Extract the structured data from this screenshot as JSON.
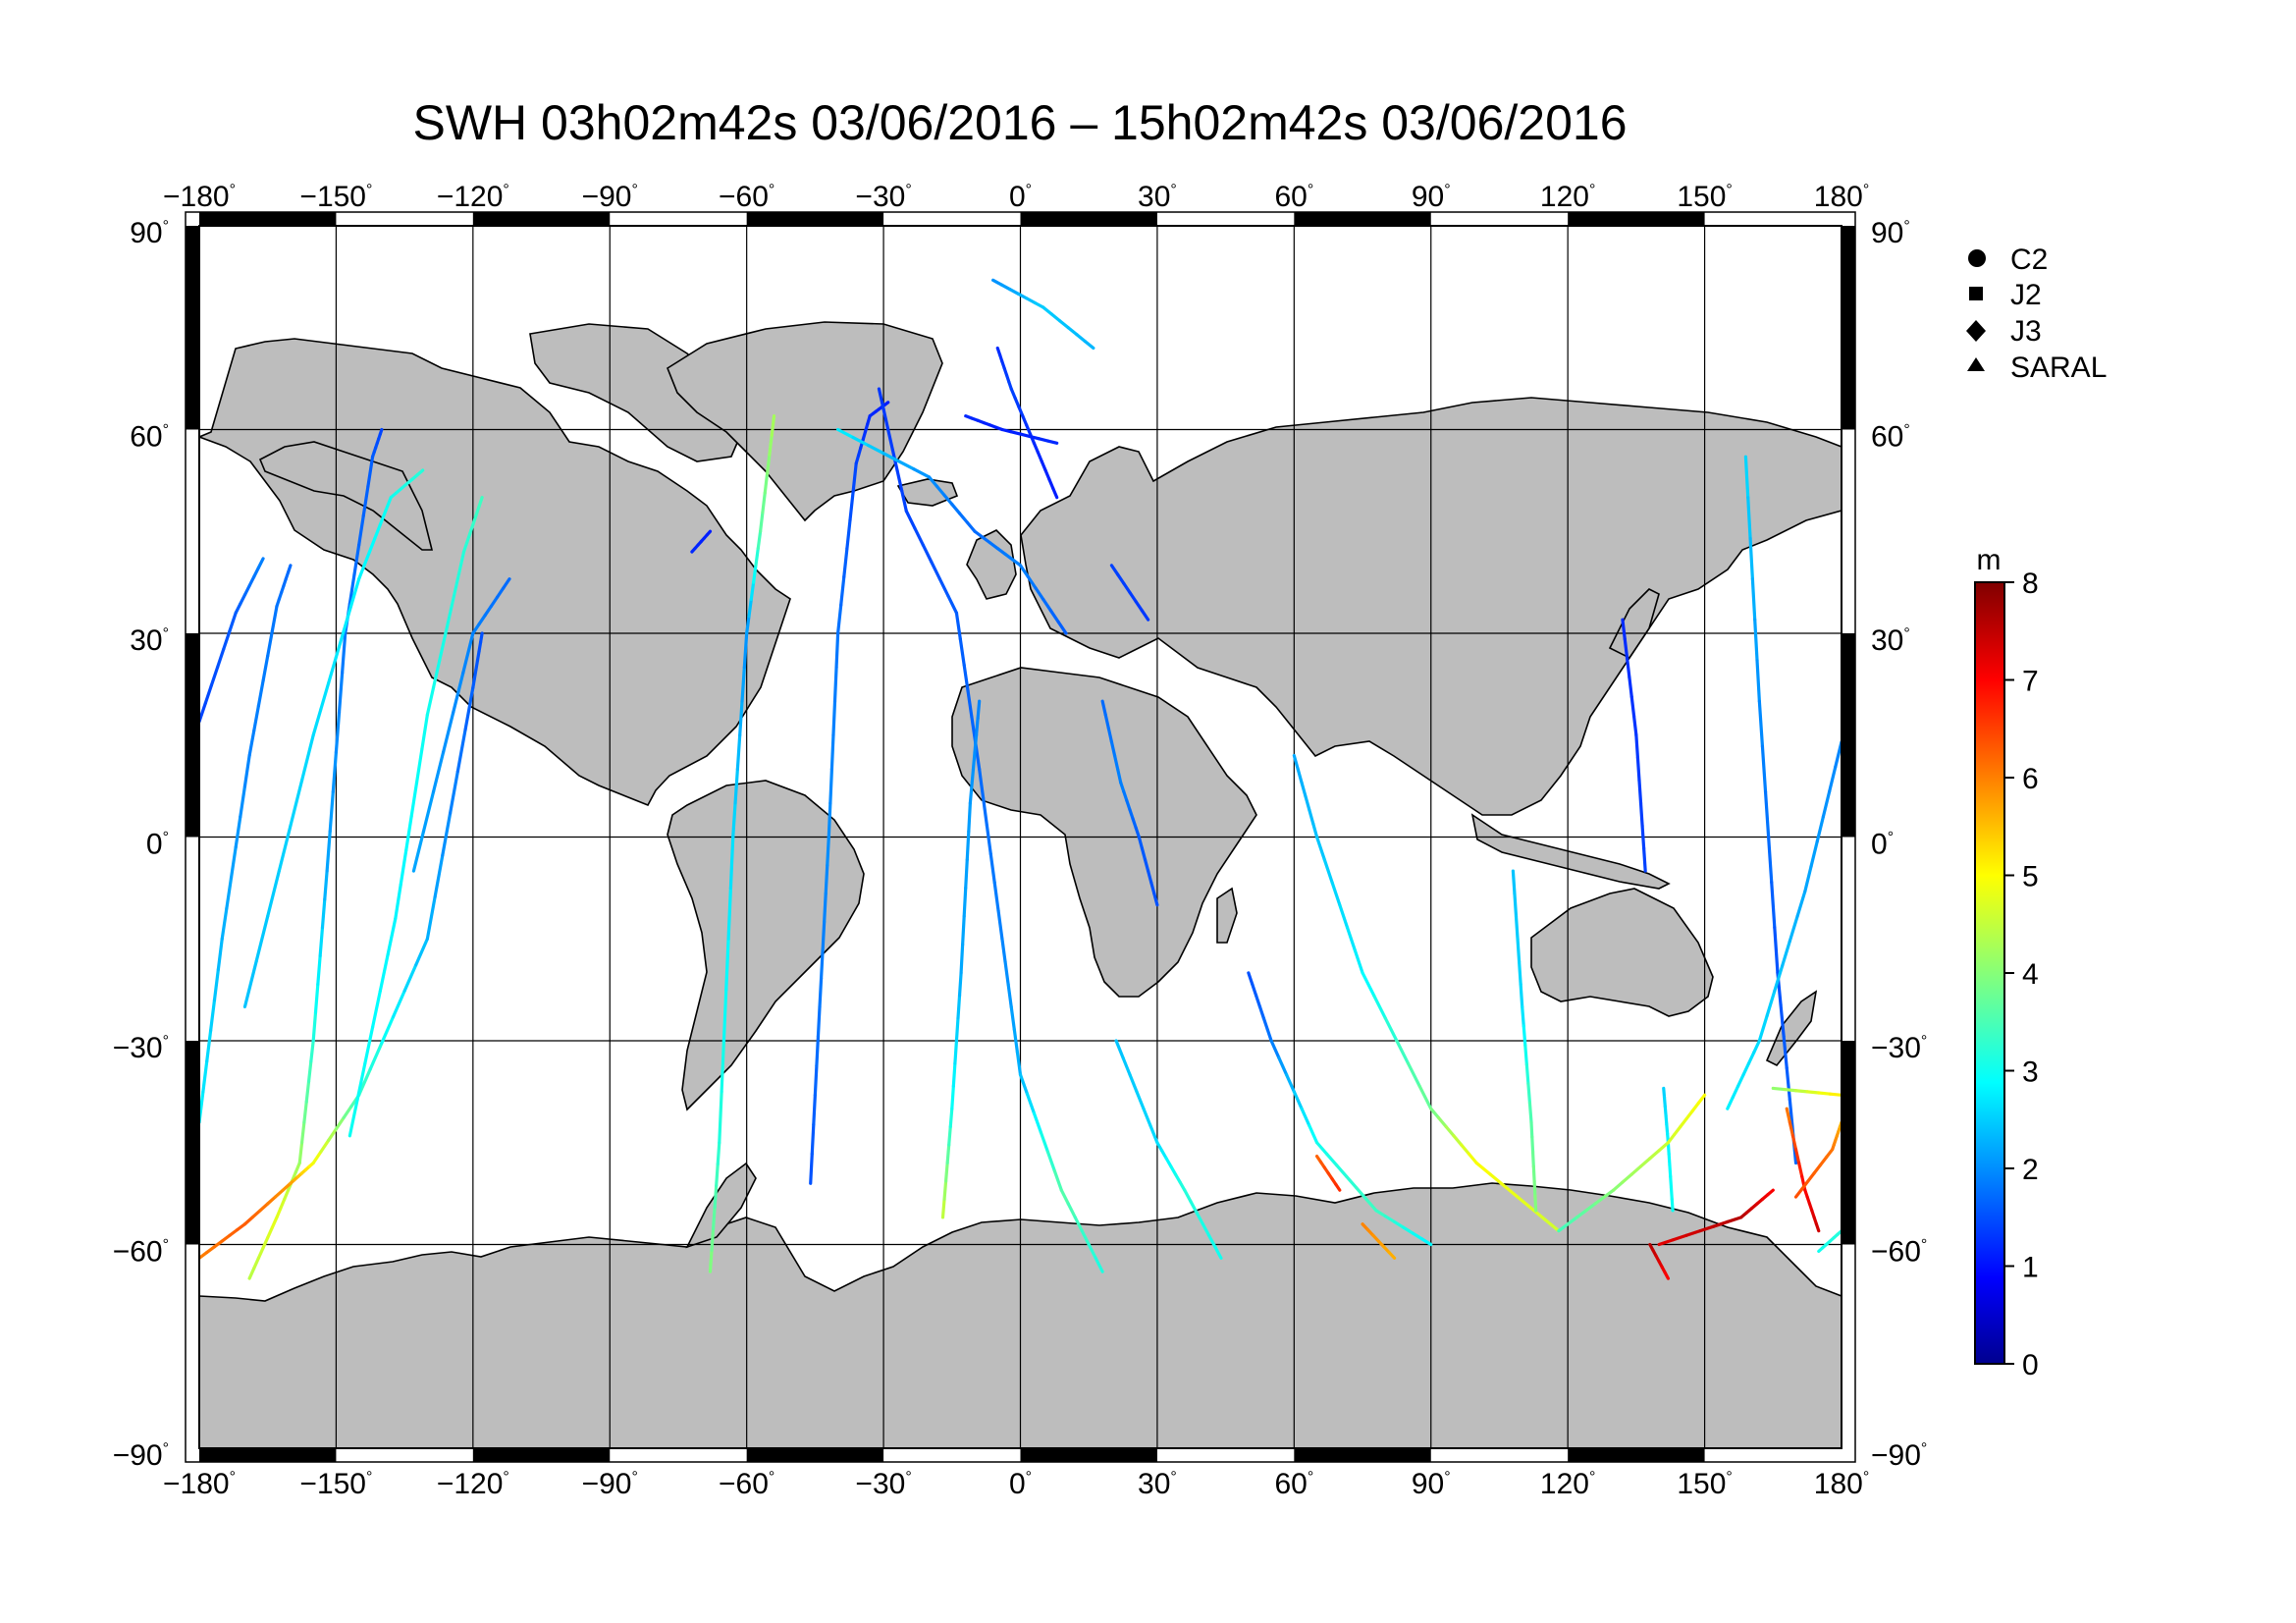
{
  "map": {
    "title": "SWH 03h02m42s 03/06/2016 – 15h02m42s 03/06/2016",
    "lon_ticks": [
      -180,
      -150,
      -120,
      -90,
      -60,
      -30,
      0,
      30,
      60,
      90,
      120,
      150,
      180
    ],
    "lat_ticks": [
      90,
      60,
      30,
      0,
      -30,
      -60,
      -90
    ],
    "lon_labels": [
      "−180",
      "−150",
      "−120",
      "−90",
      "−60",
      "−30",
      "0",
      "30",
      "60",
      "90",
      "120",
      "150",
      "180"
    ],
    "lat_labels": [
      "90",
      "60",
      "30",
      "0",
      "−30",
      "−60",
      "−90"
    ],
    "degree_symbol": "°",
    "projection": "equirectangular",
    "grid": true,
    "colors": {
      "land": "#bdbdbd",
      "ocean": "#ffffff",
      "frame": "#000000"
    }
  },
  "legend": {
    "placement": "top-right",
    "items": [
      {
        "label": "C2",
        "marker": "circle"
      },
      {
        "label": "J2",
        "marker": "square"
      },
      {
        "label": "J3",
        "marker": "diamond"
      },
      {
        "label": "SARAL",
        "marker": "triangle"
      }
    ]
  },
  "colorbar": {
    "unit": "m",
    "min": 0,
    "max": 8,
    "ticks": [
      0,
      1,
      2,
      3,
      4,
      5,
      6,
      7,
      8
    ],
    "tick_labels": [
      "0",
      "1",
      "2",
      "3",
      "4",
      "5",
      "6",
      "7",
      "8"
    ],
    "colormap": "jet"
  },
  "chart_data": {
    "type": "scatter",
    "variable": "SWH",
    "unit": "m",
    "xlim": [
      -180,
      180
    ],
    "ylim": [
      -90,
      90
    ],
    "tracks": [
      {
        "points": [
          [
            -180,
            17,
            1.4
          ],
          [
            -172,
            33,
            1.6
          ],
          [
            -166,
            41,
            1.9
          ]
        ]
      },
      {
        "points": [
          [
            -180,
            -42,
            2.8
          ],
          [
            -175,
            -15,
            2.3
          ],
          [
            -169,
            12,
            1.9
          ],
          [
            -163,
            34,
            1.8
          ],
          [
            -160,
            40,
            1.7
          ]
        ]
      },
      {
        "points": [
          [
            -169,
            -65,
            4.4
          ],
          [
            -163,
            -56,
            4.8
          ],
          [
            -158,
            -48,
            4.2
          ],
          [
            -155,
            -30,
            3.2
          ],
          [
            -152,
            -5,
            2.2
          ],
          [
            -148,
            30,
            1.8
          ],
          [
            -142,
            56,
            1.6
          ],
          [
            -140,
            60,
            1.4
          ]
        ]
      },
      {
        "points": [
          [
            -180,
            -62,
            6.0
          ],
          [
            -170,
            -57,
            6.3
          ],
          [
            -160,
            -51,
            5.8
          ],
          [
            -155,
            -48,
            5.0
          ],
          [
            -145,
            -38,
            3.4
          ],
          [
            -130,
            -15,
            2.3
          ],
          [
            -120,
            22,
            1.6
          ],
          [
            -118,
            30,
            1.5
          ]
        ]
      },
      {
        "points": [
          [
            -170,
            -25,
            2.4
          ],
          [
            -155,
            15,
            2.6
          ],
          [
            -145,
            38,
            2.8
          ],
          [
            -138,
            50,
            3.0
          ],
          [
            -131,
            54,
            3.2
          ]
        ]
      },
      {
        "points": [
          [
            -147,
            -44,
            3.0
          ],
          [
            -137,
            -12,
            2.8
          ],
          [
            -130,
            18,
            3.0
          ],
          [
            -122,
            42,
            3.2
          ],
          [
            -118,
            50,
            3.4
          ]
        ]
      },
      {
        "points": [
          [
            -133,
            -5,
            2.2
          ],
          [
            -120,
            30,
            1.9
          ],
          [
            -112,
            38,
            1.7
          ]
        ]
      },
      {
        "points": [
          [
            -72,
            42,
            1.2
          ],
          [
            -68,
            45,
            1.1
          ]
        ]
      },
      {
        "points": [
          [
            -68,
            -64,
            4.0
          ],
          [
            -66,
            -45,
            3.2
          ],
          [
            -63,
            0,
            2.6
          ],
          [
            -60,
            30,
            2.0
          ],
          [
            -57,
            45,
            3.6
          ],
          [
            -54,
            62,
            4.3
          ]
        ]
      },
      {
        "points": [
          [
            -46,
            -51,
            1.5
          ],
          [
            -44,
            -25,
            1.8
          ],
          [
            -42,
            0,
            2.0
          ],
          [
            -40,
            30,
            1.8
          ],
          [
            -36,
            55,
            1.4
          ],
          [
            -33,
            62,
            1.2
          ],
          [
            -29,
            64,
            1.1
          ]
        ]
      },
      {
        "points": [
          [
            -31,
            66,
            1.3
          ],
          [
            -25,
            48,
            1.4
          ],
          [
            -14,
            33,
            1.6
          ],
          [
            -9,
            10,
            1.7
          ],
          [
            -4,
            -15,
            1.9
          ],
          [
            0,
            -35,
            2.3
          ],
          [
            9,
            -52,
            3.6
          ],
          [
            18,
            -64,
            3.1
          ]
        ]
      },
      {
        "points": [
          [
            -17,
            -56,
            4.6
          ],
          [
            -15,
            -40,
            3.0
          ],
          [
            -13,
            -20,
            2.2
          ],
          [
            -11,
            5,
            2.1
          ],
          [
            -9,
            20,
            1.9
          ]
        ]
      },
      {
        "points": [
          [
            -5,
            72,
            1.2
          ],
          [
            -2,
            66,
            1.4
          ],
          [
            3,
            58,
            1.2
          ],
          [
            8,
            50,
            1.1
          ]
        ]
      },
      {
        "points": [
          [
            -6,
            82,
            2.0
          ],
          [
            5,
            78,
            2.5
          ],
          [
            16,
            72,
            2.3
          ]
        ]
      },
      {
        "points": [
          [
            -12,
            62,
            1.2
          ],
          [
            -4,
            60,
            1.1
          ],
          [
            8,
            58,
            1.2
          ]
        ]
      },
      {
        "points": [
          [
            -40,
            60,
            2.8
          ],
          [
            -20,
            53,
            2.0
          ],
          [
            -10,
            45,
            1.7
          ],
          [
            0,
            40,
            1.9
          ],
          [
            10,
            30,
            1.6
          ]
        ]
      },
      {
        "points": [
          [
            18,
            20,
            1.7
          ],
          [
            22,
            8,
            1.9
          ],
          [
            26,
            0,
            1.6
          ],
          [
            30,
            -10,
            1.5
          ]
        ]
      },
      {
        "points": [
          [
            20,
            40,
            1.4
          ],
          [
            28,
            32,
            1.3
          ]
        ]
      },
      {
        "points": [
          [
            21,
            -30,
            2.4
          ],
          [
            30,
            -45,
            2.6
          ],
          [
            36,
            -52,
            3.2
          ],
          [
            44,
            -62,
            3.0
          ]
        ]
      },
      {
        "points": [
          [
            50,
            -20,
            1.5
          ],
          [
            55,
            -30,
            1.8
          ],
          [
            65,
            -45,
            3.0
          ],
          [
            78,
            -55,
            3.4
          ],
          [
            90,
            -60,
            2.8
          ]
        ]
      },
      {
        "points": [
          [
            60,
            12,
            2.2
          ],
          [
            65,
            0,
            2.4
          ],
          [
            75,
            -20,
            2.8
          ],
          [
            90,
            -40,
            3.8
          ],
          [
            100,
            -48,
            5.0
          ],
          [
            118,
            -58,
            4.6
          ]
        ]
      },
      {
        "points": [
          [
            65,
            -47,
            6.2
          ],
          [
            70,
            -52,
            6.7
          ]
        ]
      },
      {
        "points": [
          [
            75,
            -57,
            6.0
          ],
          [
            82,
            -62,
            5.6
          ]
        ]
      },
      {
        "points": [
          [
            108,
            -5,
            2.4
          ],
          [
            110,
            -25,
            2.6
          ],
          [
            112,
            -42,
            3.6
          ],
          [
            113,
            -55,
            4.0
          ]
        ]
      },
      {
        "points": [
          [
            132,
            32,
            1.2
          ],
          [
            135,
            15,
            1.3
          ],
          [
            137,
            -5,
            1.4
          ]
        ]
      },
      {
        "points": [
          [
            141,
            -37,
            2.5
          ],
          [
            142,
            -45,
            2.8
          ],
          [
            143,
            -55,
            3.0
          ]
        ]
      },
      {
        "points": [
          [
            118,
            -58,
            3.4
          ],
          [
            130,
            -52,
            4.0
          ],
          [
            142,
            -45,
            4.6
          ],
          [
            150,
            -38,
            5.0
          ]
        ]
      },
      {
        "points": [
          [
            159,
            56,
            2.6
          ],
          [
            162,
            20,
            2.0
          ],
          [
            166,
            -20,
            1.5
          ],
          [
            170,
            -48,
            1.7
          ]
        ]
      },
      {
        "points": [
          [
            155,
            -40,
            2.8
          ],
          [
            162,
            -30,
            2.6
          ],
          [
            172,
            -8,
            2.2
          ],
          [
            180,
            14,
            1.9
          ]
        ]
      },
      {
        "points": [
          [
            168,
            -40,
            6.0
          ],
          [
            172,
            -52,
            7.0
          ],
          [
            175,
            -58,
            7.4
          ]
        ]
      },
      {
        "points": [
          [
            140,
            -60,
            7.2
          ],
          [
            158,
            -56,
            7.6
          ],
          [
            165,
            -52,
            7.0
          ]
        ]
      },
      {
        "points": [
          [
            170,
            -53,
            6.4
          ],
          [
            178,
            -46,
            6.1
          ],
          [
            180,
            -42,
            5.6
          ]
        ]
      },
      {
        "points": [
          [
            165,
            -37,
            4.0
          ],
          [
            180,
            -38,
            5.2
          ]
        ]
      },
      {
        "points": [
          [
            138,
            -60,
            7.6
          ],
          [
            142,
            -65,
            7.0
          ]
        ]
      },
      {
        "points": [
          [
            175,
            -61,
            3.0
          ],
          [
            180,
            -58,
            3.2
          ]
        ]
      }
    ]
  }
}
